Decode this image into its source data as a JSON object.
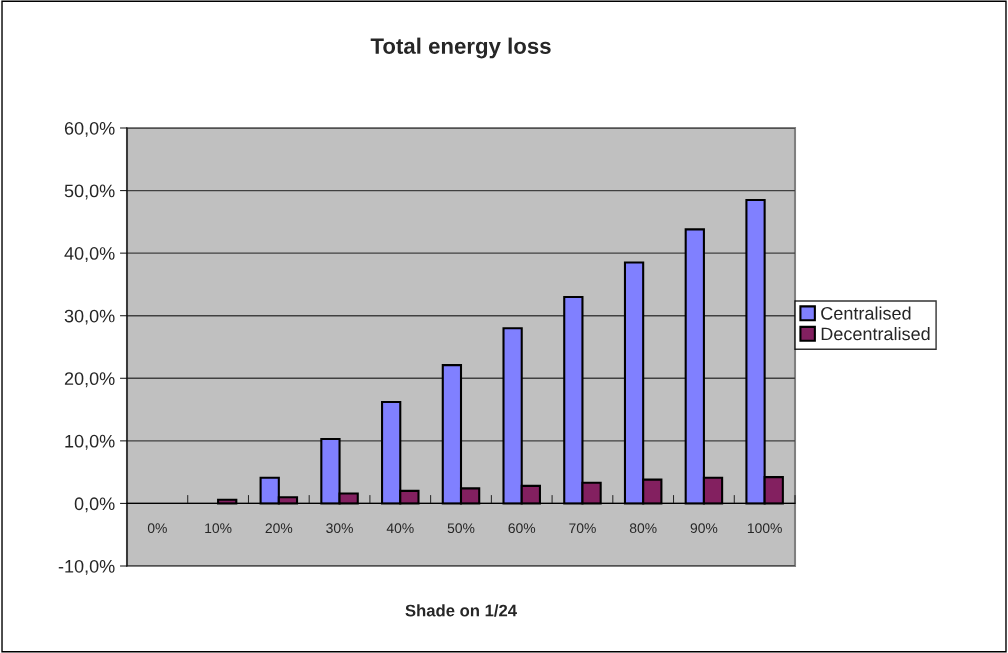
{
  "chart_data": {
    "type": "bar",
    "title": "Total energy loss",
    "xlabel": "Shade on 1/24",
    "categories": [
      "0%",
      "10%",
      "20%",
      "30%",
      "40%",
      "50%",
      "60%",
      "70%",
      "80%",
      "90%",
      "100%"
    ],
    "series": [
      {
        "name": "Centralised",
        "color": "#8080ff",
        "values": [
          null,
          null,
          4.1,
          10.3,
          16.2,
          22.1,
          28.0,
          33.0,
          38.5,
          43.8,
          48.5
        ]
      },
      {
        "name": "Decentralised",
        "color": "#832060",
        "values": [
          null,
          0.6,
          1.0,
          1.6,
          2.0,
          2.4,
          2.8,
          3.3,
          3.8,
          4.1,
          4.2
        ]
      }
    ],
    "ylim": [
      -10,
      60
    ],
    "yticks": [
      {
        "value": -10,
        "label": "-10,0%"
      },
      {
        "value": 0,
        "label": "0,0%"
      },
      {
        "value": 10,
        "label": "10,0%"
      },
      {
        "value": 20,
        "label": "20,0%"
      },
      {
        "value": 30,
        "label": "30,0%"
      },
      {
        "value": 40,
        "label": "40,0%"
      },
      {
        "value": 50,
        "label": "50,0%"
      },
      {
        "value": 60,
        "label": "60,0%"
      }
    ],
    "grid": "y",
    "legend": "right"
  }
}
